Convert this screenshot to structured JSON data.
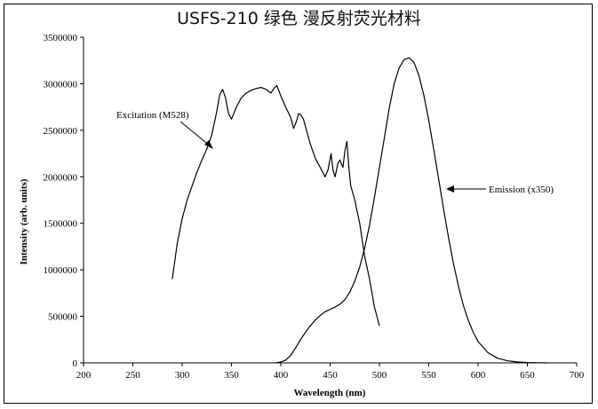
{
  "title": "USFS-210 绿色 漫反射荧光材料",
  "chart_data": {
    "type": "line",
    "title": "USFS-210 绿色 漫反射荧光材料",
    "xlabel": "Wavelength (nm)",
    "ylabel": "Intensity (arb. units)",
    "xlim": [
      200,
      700
    ],
    "ylim": [
      0,
      3500000
    ],
    "x_ticks": [
      200,
      250,
      300,
      350,
      400,
      450,
      500,
      550,
      600,
      650,
      700
    ],
    "y_ticks": [
      0,
      500000,
      1000000,
      1500000,
      2000000,
      2500000,
      3000000,
      3500000
    ],
    "grid": false,
    "annotations": [
      "Excitation (M528)",
      "Emission (x350)"
    ],
    "series": [
      {
        "name": "Excitation (M528)",
        "x": [
          290,
          295,
          300,
          305,
          310,
          315,
          320,
          325,
          330,
          335,
          338,
          341,
          344,
          347,
          350,
          355,
          360,
          365,
          370,
          375,
          380,
          385,
          390,
          393,
          396,
          400,
          405,
          410,
          413,
          416,
          418,
          420,
          423,
          426,
          430,
          435,
          440,
          445,
          448,
          451,
          453,
          455,
          458,
          460,
          463,
          465,
          467,
          469,
          471,
          475,
          480,
          485,
          490,
          495,
          500
        ],
        "y": [
          900000,
          1280000,
          1550000,
          1750000,
          1900000,
          2050000,
          2180000,
          2300000,
          2450000,
          2700000,
          2880000,
          2940000,
          2850000,
          2680000,
          2620000,
          2750000,
          2850000,
          2900000,
          2930000,
          2950000,
          2960000,
          2940000,
          2900000,
          2950000,
          2980000,
          2870000,
          2750000,
          2640000,
          2520000,
          2600000,
          2680000,
          2670000,
          2620000,
          2500000,
          2350000,
          2200000,
          2100000,
          2000000,
          2080000,
          2250000,
          2070000,
          2000000,
          2150000,
          2180000,
          2100000,
          2280000,
          2380000,
          2100000,
          1900000,
          1750000,
          1500000,
          1150000,
          900000,
          600000,
          400000
        ]
      },
      {
        "name": "Emission (x350)",
        "x": [
          395,
          400,
          405,
          410,
          415,
          420,
          425,
          430,
          435,
          440,
          445,
          450,
          455,
          460,
          465,
          470,
          475,
          480,
          485,
          490,
          495,
          500,
          505,
          510,
          515,
          520,
          525,
          530,
          535,
          540,
          545,
          550,
          555,
          560,
          565,
          570,
          575,
          580,
          585,
          590,
          595,
          600,
          610,
          620,
          630,
          640,
          650,
          660,
          670
        ],
        "y": [
          0,
          10000,
          30000,
          80000,
          160000,
          250000,
          330000,
          400000,
          460000,
          510000,
          550000,
          575000,
          600000,
          630000,
          680000,
          760000,
          880000,
          1030000,
          1230000,
          1480000,
          1780000,
          2100000,
          2420000,
          2740000,
          3000000,
          3170000,
          3260000,
          3280000,
          3230000,
          3090000,
          2880000,
          2610000,
          2300000,
          1980000,
          1660000,
          1350000,
          1070000,
          830000,
          620000,
          460000,
          330000,
          230000,
          110000,
          50000,
          22000,
          10000,
          4000,
          1500,
          0
        ]
      }
    ]
  }
}
